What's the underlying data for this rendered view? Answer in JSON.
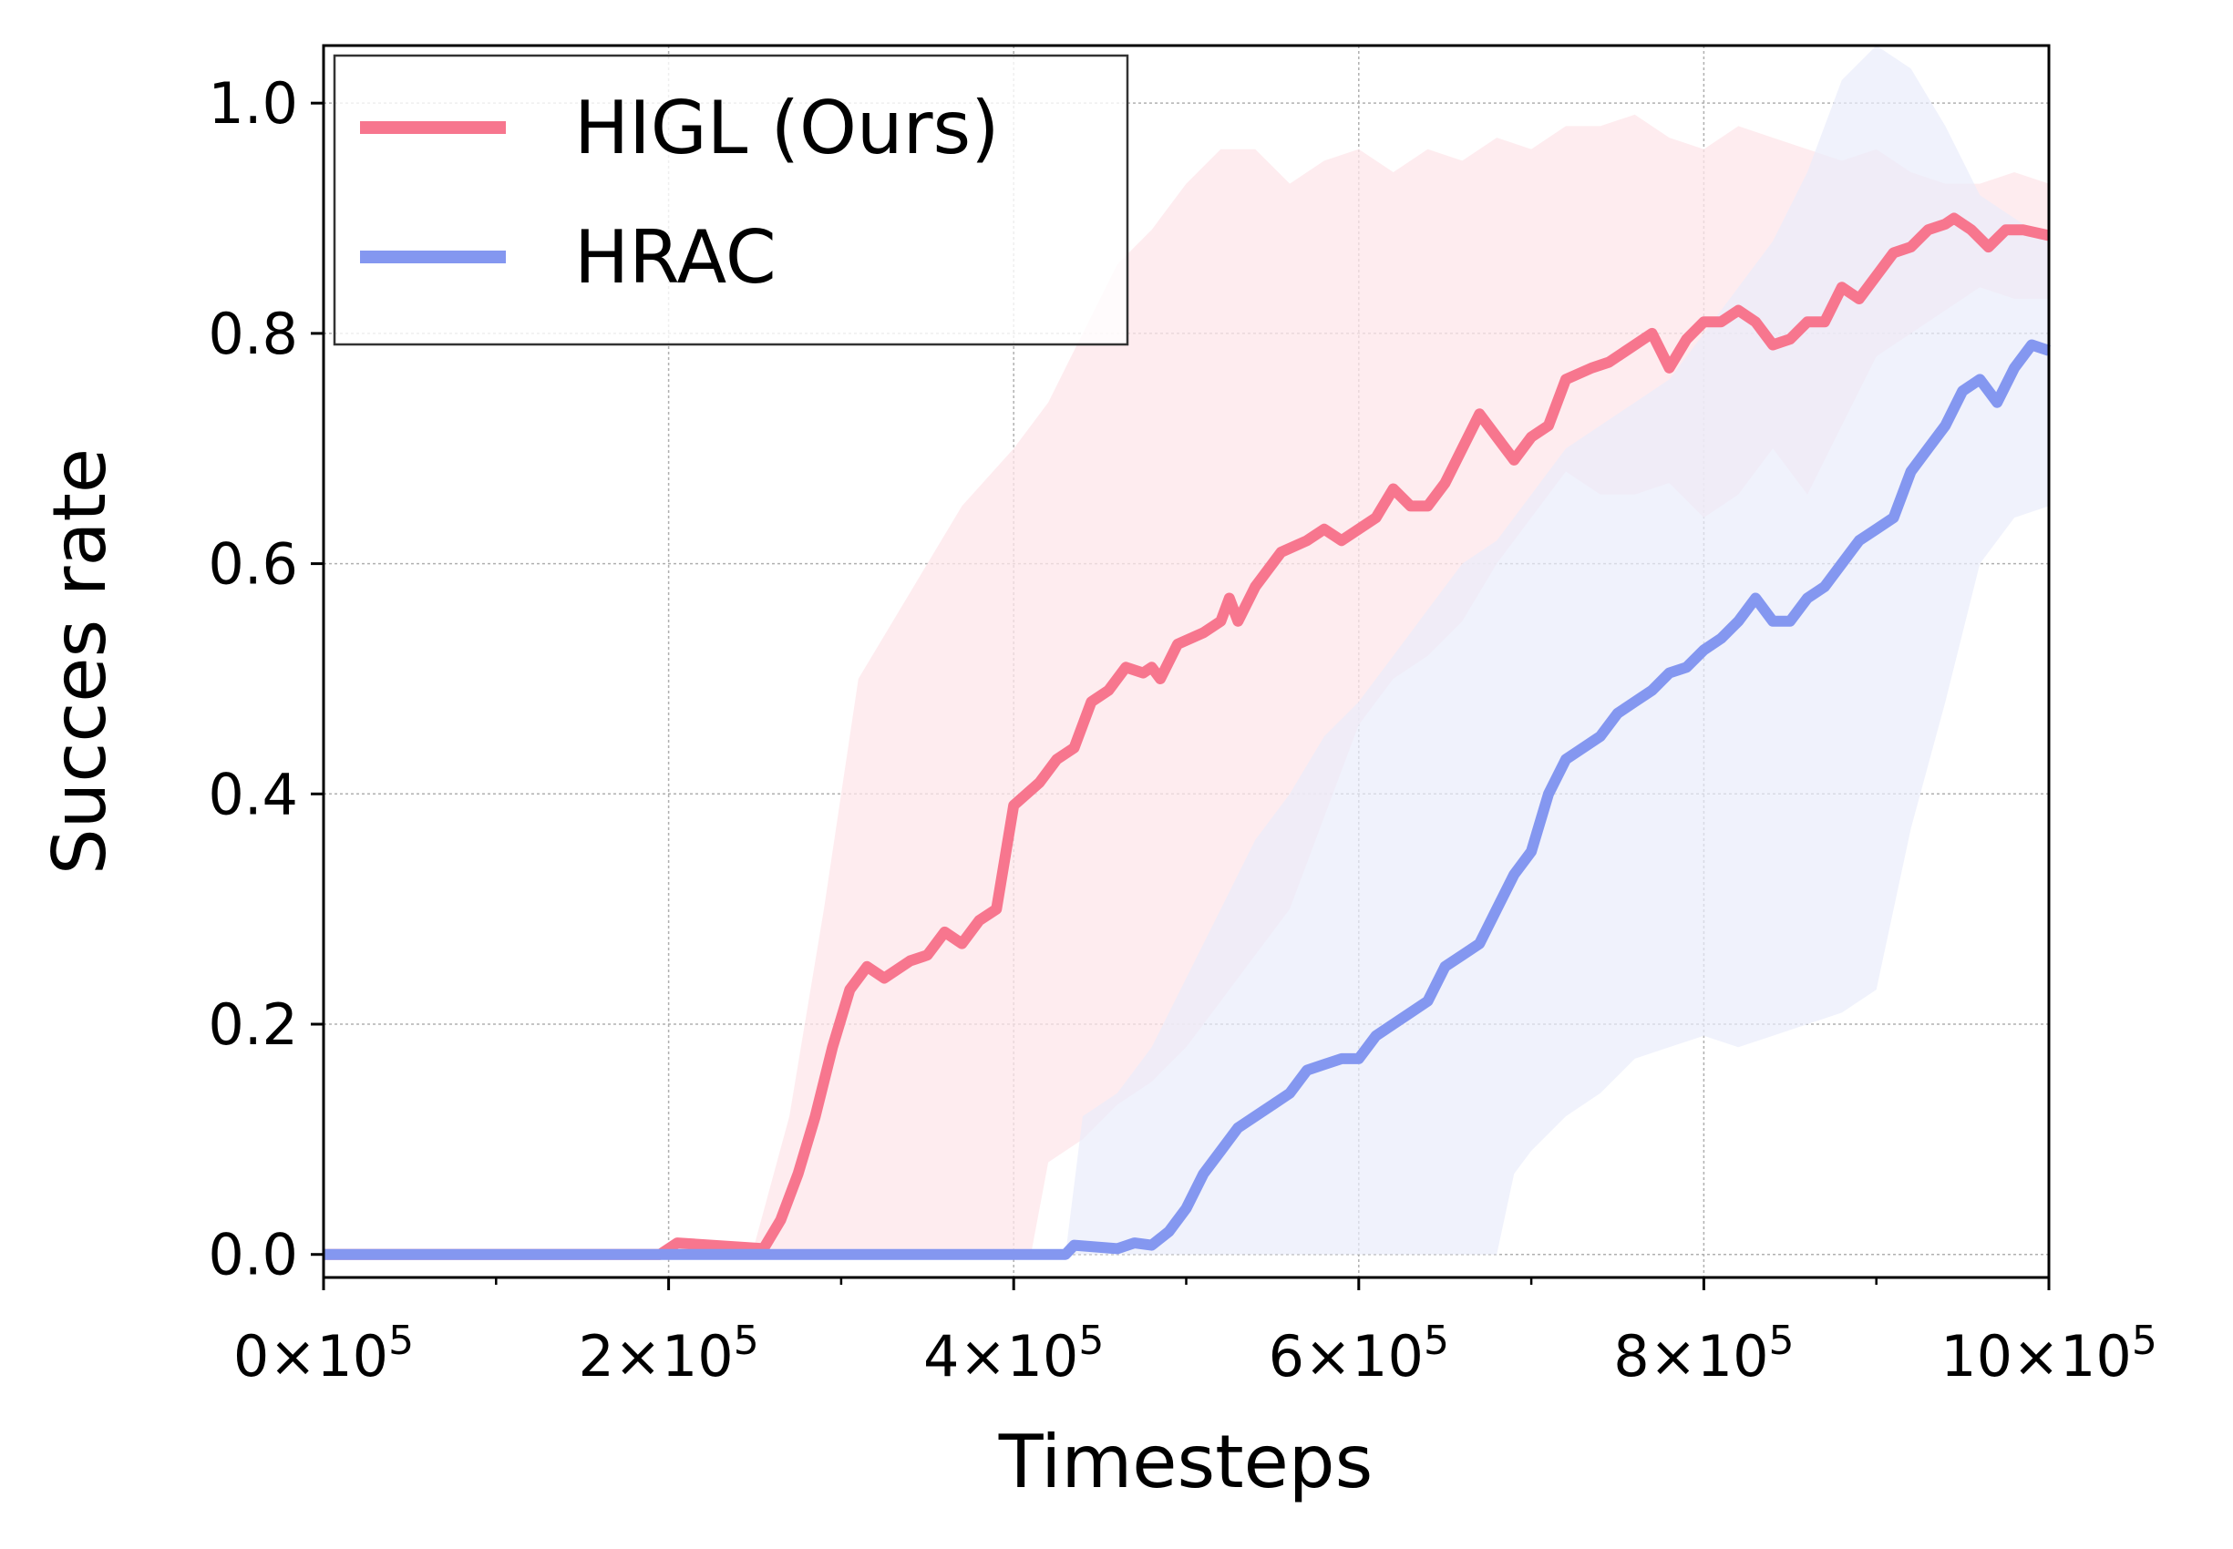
{
  "chart_data": {
    "type": "line",
    "xlabel": "Timesteps",
    "ylabel": "Succes rate",
    "xlim": [
      0,
      1000000
    ],
    "ylim": [
      -0.02,
      1.05
    ],
    "grid": true,
    "legend_position": "top-left",
    "x_ticks": [
      0,
      200000,
      400000,
      600000,
      800000,
      1000000
    ],
    "x_tick_labels": [
      {
        "mantissa": "0",
        "sep": "×10",
        "exp": "5"
      },
      {
        "mantissa": "2",
        "sep": "×10",
        "exp": "5"
      },
      {
        "mantissa": "4",
        "sep": "×10",
        "exp": "5"
      },
      {
        "mantissa": "6",
        "sep": "×10",
        "exp": "5"
      },
      {
        "mantissa": "8",
        "sep": "×10",
        "exp": "5"
      },
      {
        "mantissa": "10",
        "sep": "×10",
        "exp": "5"
      }
    ],
    "x_minor_ticks": [
      100000,
      300000,
      500000,
      700000,
      900000
    ],
    "y_ticks": [
      0.0,
      0.2,
      0.4,
      0.6,
      0.8,
      1.0
    ],
    "y_tick_labels": [
      "0.0",
      "0.2",
      "0.4",
      "0.6",
      "0.8",
      "1.0"
    ],
    "series": [
      {
        "name": "HIGL (Ours)",
        "color": "#f7768e",
        "band_color": "#fde6ea",
        "points": [
          [
            0,
            0.0
          ],
          [
            195000,
            0.0
          ],
          [
            205000,
            0.01
          ],
          [
            255000,
            0.005
          ],
          [
            265000,
            0.03
          ],
          [
            275000,
            0.07
          ],
          [
            285000,
            0.12
          ],
          [
            295000,
            0.18
          ],
          [
            305000,
            0.23
          ],
          [
            315000,
            0.25
          ],
          [
            325000,
            0.24
          ],
          [
            340000,
            0.255
          ],
          [
            350000,
            0.26
          ],
          [
            360000,
            0.28
          ],
          [
            370000,
            0.27
          ],
          [
            380000,
            0.29
          ],
          [
            390000,
            0.3
          ],
          [
            400000,
            0.39
          ],
          [
            415000,
            0.41
          ],
          [
            425000,
            0.43
          ],
          [
            435000,
            0.44
          ],
          [
            445000,
            0.48
          ],
          [
            455000,
            0.49
          ],
          [
            465000,
            0.51
          ],
          [
            475000,
            0.505
          ],
          [
            480000,
            0.51
          ],
          [
            485000,
            0.5
          ],
          [
            495000,
            0.53
          ],
          [
            510000,
            0.54
          ],
          [
            520000,
            0.55
          ],
          [
            525000,
            0.57
          ],
          [
            530000,
            0.55
          ],
          [
            540000,
            0.58
          ],
          [
            555000,
            0.61
          ],
          [
            570000,
            0.62
          ],
          [
            580000,
            0.63
          ],
          [
            590000,
            0.62
          ],
          [
            610000,
            0.64
          ],
          [
            620000,
            0.665
          ],
          [
            630000,
            0.65
          ],
          [
            640000,
            0.65
          ],
          [
            650000,
            0.67
          ],
          [
            660000,
            0.7
          ],
          [
            670000,
            0.73
          ],
          [
            680000,
            0.71
          ],
          [
            690000,
            0.69
          ],
          [
            700000,
            0.71
          ],
          [
            710000,
            0.72
          ],
          [
            720000,
            0.76
          ],
          [
            735000,
            0.77
          ],
          [
            745000,
            0.775
          ],
          [
            760000,
            0.79
          ],
          [
            770000,
            0.8
          ],
          [
            780000,
            0.77
          ],
          [
            790000,
            0.795
          ],
          [
            800000,
            0.81
          ],
          [
            810000,
            0.81
          ],
          [
            820000,
            0.82
          ],
          [
            830000,
            0.81
          ],
          [
            840000,
            0.79
          ],
          [
            850000,
            0.795
          ],
          [
            860000,
            0.81
          ],
          [
            870000,
            0.81
          ],
          [
            880000,
            0.84
          ],
          [
            890000,
            0.83
          ],
          [
            900000,
            0.85
          ],
          [
            910000,
            0.87
          ],
          [
            920000,
            0.875
          ],
          [
            930000,
            0.89
          ],
          [
            940000,
            0.895
          ],
          [
            945000,
            0.9
          ],
          [
            955000,
            0.89
          ],
          [
            965000,
            0.875
          ],
          [
            975000,
            0.89
          ],
          [
            985000,
            0.89
          ],
          [
            1000000,
            0.885
          ]
        ],
        "lower": [
          [
            0,
            0.0
          ],
          [
            200000,
            0.0
          ],
          [
            240000,
            0.0
          ],
          [
            260000,
            0.0
          ],
          [
            280000,
            0.0
          ],
          [
            320000,
            0.0
          ],
          [
            360000,
            0.0
          ],
          [
            400000,
            0.0
          ],
          [
            410000,
            0.0
          ],
          [
            420000,
            0.08
          ],
          [
            440000,
            0.1
          ],
          [
            460000,
            0.13
          ],
          [
            480000,
            0.15
          ],
          [
            500000,
            0.18
          ],
          [
            520000,
            0.22
          ],
          [
            540000,
            0.26
          ],
          [
            560000,
            0.3
          ],
          [
            580000,
            0.38
          ],
          [
            600000,
            0.46
          ],
          [
            620000,
            0.5
          ],
          [
            640000,
            0.52
          ],
          [
            660000,
            0.55
          ],
          [
            680000,
            0.6
          ],
          [
            700000,
            0.64
          ],
          [
            720000,
            0.68
          ],
          [
            740000,
            0.66
          ],
          [
            760000,
            0.66
          ],
          [
            780000,
            0.67
          ],
          [
            800000,
            0.64
          ],
          [
            820000,
            0.66
          ],
          [
            840000,
            0.7
          ],
          [
            860000,
            0.66
          ],
          [
            880000,
            0.72
          ],
          [
            900000,
            0.78
          ],
          [
            920000,
            0.8
          ],
          [
            940000,
            0.82
          ],
          [
            960000,
            0.84
          ],
          [
            980000,
            0.83
          ],
          [
            1000000,
            0.83
          ]
        ],
        "upper": [
          [
            0,
            0.0
          ],
          [
            200000,
            0.0
          ],
          [
            250000,
            0.01
          ],
          [
            270000,
            0.12
          ],
          [
            290000,
            0.3
          ],
          [
            310000,
            0.5
          ],
          [
            330000,
            0.55
          ],
          [
            350000,
            0.6
          ],
          [
            370000,
            0.65
          ],
          [
            400000,
            0.7
          ],
          [
            420000,
            0.74
          ],
          [
            440000,
            0.8
          ],
          [
            460000,
            0.86
          ],
          [
            480000,
            0.89
          ],
          [
            500000,
            0.93
          ],
          [
            520000,
            0.96
          ],
          [
            540000,
            0.96
          ],
          [
            560000,
            0.93
          ],
          [
            580000,
            0.95
          ],
          [
            600000,
            0.96
          ],
          [
            620000,
            0.94
          ],
          [
            640000,
            0.96
          ],
          [
            660000,
            0.95
          ],
          [
            680000,
            0.97
          ],
          [
            700000,
            0.96
          ],
          [
            720000,
            0.98
          ],
          [
            740000,
            0.98
          ],
          [
            760000,
            0.99
          ],
          [
            780000,
            0.97
          ],
          [
            800000,
            0.96
          ],
          [
            820000,
            0.98
          ],
          [
            840000,
            0.97
          ],
          [
            860000,
            0.96
          ],
          [
            880000,
            0.95
          ],
          [
            900000,
            0.96
          ],
          [
            920000,
            0.94
          ],
          [
            940000,
            0.93
          ],
          [
            960000,
            0.93
          ],
          [
            980000,
            0.94
          ],
          [
            1000000,
            0.93
          ]
        ]
      },
      {
        "name": "HRAC",
        "color": "#8497f0",
        "band_color": "#e9edfb",
        "points": [
          [
            0,
            0.0
          ],
          [
            430000,
            0.0
          ],
          [
            435000,
            0.008
          ],
          [
            460000,
            0.005
          ],
          [
            470000,
            0.01
          ],
          [
            480000,
            0.008
          ],
          [
            490000,
            0.02
          ],
          [
            500000,
            0.04
          ],
          [
            510000,
            0.07
          ],
          [
            520000,
            0.09
          ],
          [
            530000,
            0.11
          ],
          [
            540000,
            0.12
          ],
          [
            550000,
            0.13
          ],
          [
            560000,
            0.14
          ],
          [
            570000,
            0.16
          ],
          [
            580000,
            0.165
          ],
          [
            590000,
            0.17
          ],
          [
            600000,
            0.17
          ],
          [
            610000,
            0.19
          ],
          [
            620000,
            0.2
          ],
          [
            630000,
            0.21
          ],
          [
            640000,
            0.22
          ],
          [
            650000,
            0.25
          ],
          [
            660000,
            0.26
          ],
          [
            670000,
            0.27
          ],
          [
            680000,
            0.3
          ],
          [
            690000,
            0.33
          ],
          [
            700000,
            0.35
          ],
          [
            710000,
            0.4
          ],
          [
            720000,
            0.43
          ],
          [
            730000,
            0.44
          ],
          [
            740000,
            0.45
          ],
          [
            750000,
            0.47
          ],
          [
            760000,
            0.48
          ],
          [
            770000,
            0.49
          ],
          [
            780000,
            0.505
          ],
          [
            790000,
            0.51
          ],
          [
            800000,
            0.525
          ],
          [
            810000,
            0.535
          ],
          [
            820000,
            0.55
          ],
          [
            830000,
            0.57
          ],
          [
            840000,
            0.55
          ],
          [
            850000,
            0.55
          ],
          [
            860000,
            0.57
          ],
          [
            870000,
            0.58
          ],
          [
            880000,
            0.6
          ],
          [
            890000,
            0.62
          ],
          [
            900000,
            0.63
          ],
          [
            910000,
            0.64
          ],
          [
            920000,
            0.68
          ],
          [
            930000,
            0.7
          ],
          [
            940000,
            0.72
          ],
          [
            950000,
            0.75
          ],
          [
            960000,
            0.76
          ],
          [
            970000,
            0.74
          ],
          [
            980000,
            0.77
          ],
          [
            990000,
            0.79
          ],
          [
            1000000,
            0.785
          ]
        ],
        "lower": [
          [
            0,
            0.0
          ],
          [
            430000,
            0.0
          ],
          [
            500000,
            0.0
          ],
          [
            600000,
            0.0
          ],
          [
            660000,
            0.0
          ],
          [
            680000,
            0.0
          ],
          [
            690000,
            0.07
          ],
          [
            700000,
            0.09
          ],
          [
            720000,
            0.12
          ],
          [
            740000,
            0.14
          ],
          [
            760000,
            0.17
          ],
          [
            780000,
            0.18
          ],
          [
            800000,
            0.19
          ],
          [
            820000,
            0.18
          ],
          [
            840000,
            0.19
          ],
          [
            860000,
            0.2
          ],
          [
            880000,
            0.21
          ],
          [
            900000,
            0.23
          ],
          [
            920000,
            0.37
          ],
          [
            940000,
            0.48
          ],
          [
            960000,
            0.6
          ],
          [
            980000,
            0.64
          ],
          [
            1000000,
            0.65
          ]
        ],
        "upper": [
          [
            0,
            0.0
          ],
          [
            430000,
            0.0
          ],
          [
            440000,
            0.12
          ],
          [
            460000,
            0.14
          ],
          [
            480000,
            0.18
          ],
          [
            500000,
            0.24
          ],
          [
            520000,
            0.3
          ],
          [
            540000,
            0.36
          ],
          [
            560000,
            0.4
          ],
          [
            580000,
            0.45
          ],
          [
            600000,
            0.48
          ],
          [
            620000,
            0.52
          ],
          [
            640000,
            0.56
          ],
          [
            660000,
            0.6
          ],
          [
            680000,
            0.62
          ],
          [
            700000,
            0.66
          ],
          [
            720000,
            0.7
          ],
          [
            740000,
            0.72
          ],
          [
            760000,
            0.74
          ],
          [
            780000,
            0.76
          ],
          [
            800000,
            0.8
          ],
          [
            820000,
            0.84
          ],
          [
            840000,
            0.88
          ],
          [
            860000,
            0.94
          ],
          [
            880000,
            1.02
          ],
          [
            900000,
            1.05
          ],
          [
            920000,
            1.03
          ],
          [
            940000,
            0.98
          ],
          [
            960000,
            0.92
          ],
          [
            980000,
            0.9
          ],
          [
            1000000,
            0.88
          ]
        ]
      }
    ]
  }
}
